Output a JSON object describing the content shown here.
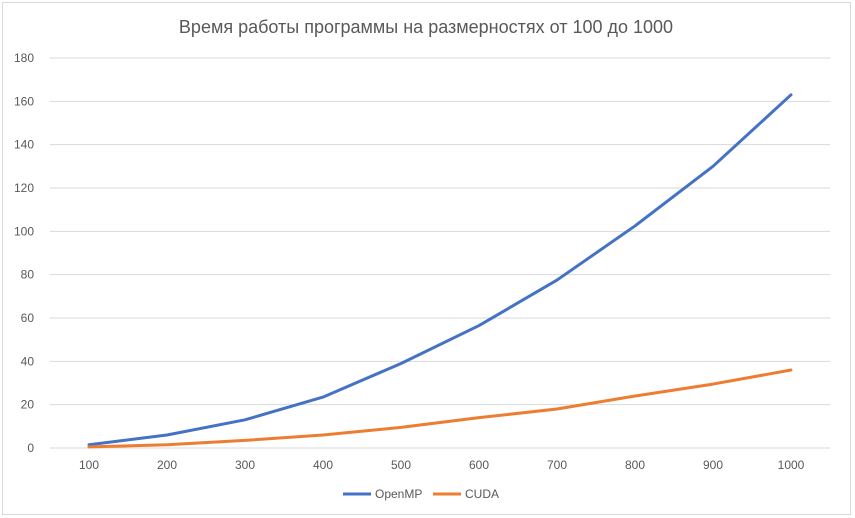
{
  "chart_data": {
    "type": "line",
    "title": "Время работы программы на размерностях от 100 до 1000",
    "xlabel": "",
    "ylabel": "",
    "categories": [
      "100",
      "200",
      "300",
      "400",
      "500",
      "600",
      "700",
      "800",
      "900",
      "1000"
    ],
    "ylim": [
      0,
      180
    ],
    "yticks": [
      "0",
      "20",
      "40",
      "60",
      "80",
      "100",
      "120",
      "140",
      "160",
      "180"
    ],
    "grid": true,
    "legend_position": "bottom",
    "series": [
      {
        "name": "OpenMP",
        "color": "#4472c4",
        "values": [
          1.5,
          6,
          13,
          23.5,
          39,
          56.5,
          77.5,
          102.5,
          130,
          163
        ]
      },
      {
        "name": "CUDA",
        "color": "#ed7d31",
        "values": [
          0.5,
          1.5,
          3.5,
          6,
          9.5,
          14,
          18,
          24,
          29.5,
          36
        ]
      }
    ]
  }
}
